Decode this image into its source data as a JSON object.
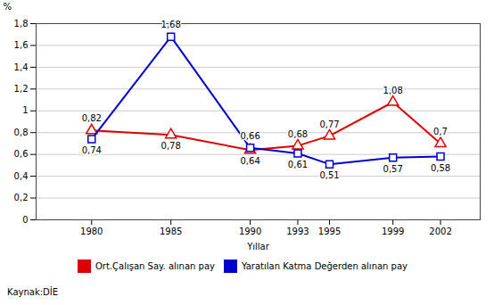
{
  "chart_data": {
    "type": "line",
    "xlabel": "Yıllar",
    "ylabel": "%",
    "x": [
      1980,
      1985,
      1990,
      1993,
      1995,
      1999,
      2002
    ],
    "xlim": [
      1976.5,
      2004.5
    ],
    "xticks": [
      1980,
      1985,
      1990,
      1993,
      1995,
      1999,
      2002
    ],
    "ylim": [
      0,
      1.8
    ],
    "yticks": [
      0,
      {
        "value": 0.2,
        "label": "0,2"
      },
      {
        "value": 0.4,
        "label": "0,4"
      },
      {
        "value": 0.6,
        "label": "0,6"
      },
      {
        "value": 0.8,
        "label": "0,8"
      },
      1,
      {
        "value": 1.2,
        "label": "1,2"
      },
      {
        "value": 1.4,
        "label": "1,4"
      },
      {
        "value": 1.6,
        "label": "1,6"
      },
      {
        "value": 1.8,
        "label": "1,8"
      }
    ],
    "grid": true,
    "legend": "bottom",
    "data_labels": true,
    "series": [
      {
        "name": "Ort.Çalışan Say. alınan pay",
        "color": "#dd0000",
        "marker": "triangle",
        "values": [
          0.82,
          0.78,
          0.64,
          0.68,
          0.77,
          1.08,
          0.7
        ],
        "value_labels": [
          "0,82",
          "0,78",
          "0,64",
          "0,68",
          "0,77",
          "1,08",
          "0,7"
        ]
      },
      {
        "name": "Yaratılan Katma Değerden alınan pay",
        "color": "#0000cc",
        "marker": "square",
        "values": [
          0.74,
          1.68,
          0.66,
          0.61,
          0.51,
          0.57,
          0.58
        ],
        "value_labels": [
          "0,74",
          "1,68",
          "0,66",
          "0,61",
          "0,51",
          "0,57",
          "0,58"
        ]
      }
    ],
    "annotations": [
      "Kaynak:DİE"
    ]
  }
}
